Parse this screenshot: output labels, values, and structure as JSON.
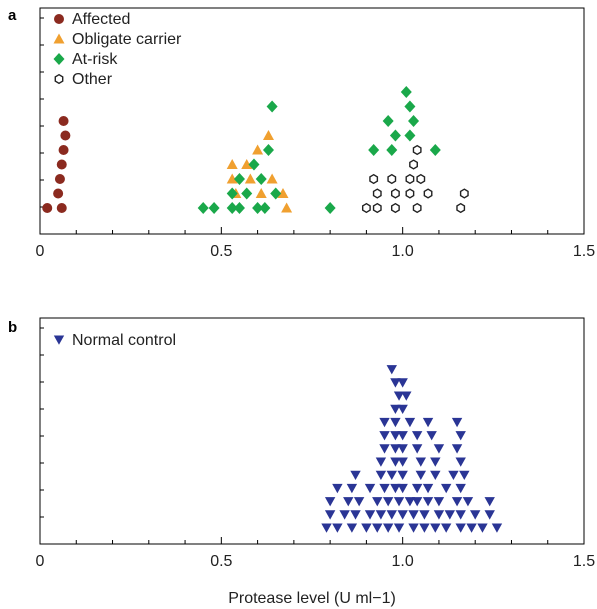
{
  "colors": {
    "affected": "#8b2a1f",
    "obligate_carrier": "#f0a030",
    "at_risk": "#1aa84a",
    "other_stroke": "#222222",
    "normal_control": "#2a3595",
    "axis": "#000000"
  },
  "chart_data": [
    {
      "panel": "a",
      "type": "scatter",
      "xlim": [
        0,
        1.5
      ],
      "x_ticks": [
        0,
        0.5,
        1.0,
        1.5
      ],
      "x_tick_labels": [
        "0",
        "0.5",
        "1.0",
        "1.5"
      ],
      "x_minor_step": 0.1,
      "ylabel": "",
      "legend_position": "top-left",
      "series": [
        {
          "name": "Affected",
          "marker": "circle",
          "color_key": "affected",
          "points": [
            [
              0.02,
              1
            ],
            [
              0.06,
              1
            ],
            [
              0.05,
              2
            ],
            [
              0.055,
              3
            ],
            [
              0.06,
              4
            ],
            [
              0.065,
              5
            ],
            [
              0.07,
              6
            ],
            [
              0.065,
              7
            ]
          ]
        },
        {
          "name": "Obligate carrier",
          "marker": "triangle-up",
          "color_key": "obligate_carrier",
          "points": [
            [
              0.68,
              1
            ],
            [
              0.54,
              2
            ],
            [
              0.61,
              2
            ],
            [
              0.67,
              2
            ],
            [
              0.53,
              3
            ],
            [
              0.58,
              3
            ],
            [
              0.64,
              3
            ],
            [
              0.53,
              4
            ],
            [
              0.57,
              4
            ],
            [
              0.6,
              5
            ],
            [
              0.63,
              6
            ]
          ]
        },
        {
          "name": "At-risk",
          "marker": "diamond",
          "color_key": "at_risk",
          "points": [
            [
              0.45,
              1
            ],
            [
              0.48,
              1
            ],
            [
              0.53,
              1
            ],
            [
              0.55,
              1
            ],
            [
              0.6,
              1
            ],
            [
              0.62,
              1
            ],
            [
              0.8,
              1
            ],
            [
              0.53,
              2
            ],
            [
              0.57,
              2
            ],
            [
              0.65,
              2
            ],
            [
              0.55,
              3
            ],
            [
              0.61,
              3
            ],
            [
              0.59,
              4
            ],
            [
              0.63,
              5
            ],
            [
              0.92,
              5
            ],
            [
              0.97,
              5
            ],
            [
              1.09,
              5
            ],
            [
              0.98,
              6
            ],
            [
              1.02,
              6
            ],
            [
              0.96,
              7
            ],
            [
              1.03,
              7
            ],
            [
              0.64,
              8
            ],
            [
              1.02,
              8
            ],
            [
              1.01,
              9
            ]
          ]
        },
        {
          "name": "Other",
          "marker": "hexagon-open",
          "color_key": "other_stroke",
          "points": [
            [
              0.9,
              1
            ],
            [
              0.93,
              1
            ],
            [
              0.98,
              1
            ],
            [
              1.04,
              1
            ],
            [
              1.16,
              1
            ],
            [
              0.93,
              2
            ],
            [
              0.98,
              2
            ],
            [
              1.02,
              2
            ],
            [
              1.07,
              2
            ],
            [
              1.17,
              2
            ],
            [
              0.92,
              3
            ],
            [
              0.97,
              3
            ],
            [
              1.02,
              3
            ],
            [
              1.05,
              3
            ],
            [
              1.03,
              4
            ],
            [
              1.04,
              5
            ]
          ]
        }
      ]
    },
    {
      "panel": "b",
      "type": "scatter",
      "xlim": [
        0,
        1.5
      ],
      "x_ticks": [
        0,
        0.5,
        1.0,
        1.5
      ],
      "x_tick_labels": [
        "0",
        "0.5",
        "1.0",
        "1.5"
      ],
      "x_minor_step": 0.1,
      "xlabel": "Protease level (U ml−1)",
      "legend_position": "top-left",
      "series": [
        {
          "name": "Normal control",
          "marker": "triangle-down",
          "color_key": "normal_control",
          "level_values": [
            [
              0.79,
              0.82,
              0.86,
              0.9,
              0.93,
              0.96,
              0.99,
              1.03,
              1.06,
              1.09,
              1.12,
              1.16,
              1.19,
              1.22,
              1.26
            ],
            [
              0.8,
              0.84,
              0.87,
              0.91,
              0.94,
              0.97,
              1.0,
              1.03,
              1.06,
              1.1,
              1.13,
              1.16,
              1.2,
              1.24
            ],
            [
              0.8,
              0.85,
              0.88,
              0.93,
              0.96,
              0.99,
              1.02,
              1.04,
              1.07,
              1.1,
              1.15,
              1.18,
              1.24
            ],
            [
              0.82,
              0.86,
              0.91,
              0.95,
              0.98,
              1.0,
              1.04,
              1.07,
              1.12,
              1.16
            ],
            [
              0.87,
              0.94,
              0.97,
              1.0,
              1.05,
              1.09,
              1.14,
              1.17
            ],
            [
              0.94,
              0.98,
              1.0,
              1.05,
              1.09,
              1.16
            ],
            [
              0.95,
              0.98,
              1.0,
              1.04,
              1.1,
              1.15
            ],
            [
              0.95,
              0.98,
              1.0,
              1.04,
              1.08,
              1.16
            ],
            [
              0.95,
              0.98,
              1.02,
              1.07,
              1.15
            ],
            [
              0.98,
              1.0
            ],
            [
              0.99,
              1.01
            ],
            [
              0.98,
              1.0
            ],
            [
              0.97
            ]
          ]
        }
      ]
    }
  ]
}
